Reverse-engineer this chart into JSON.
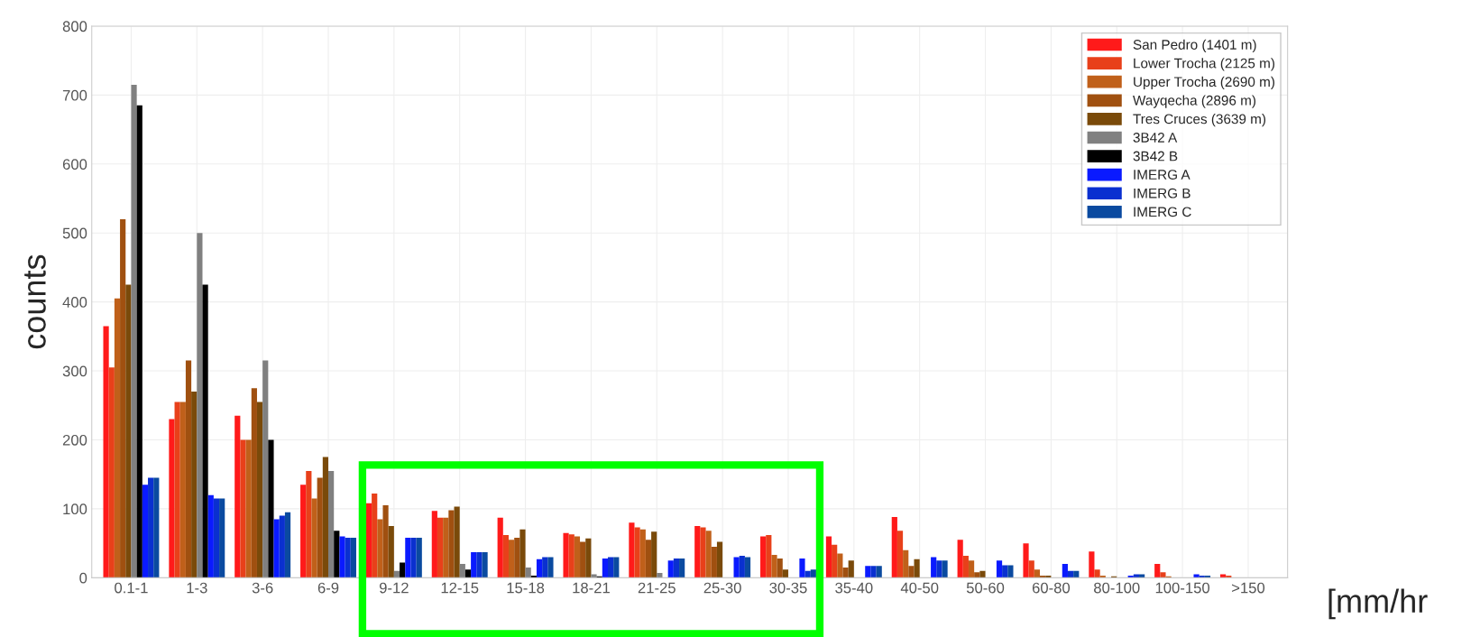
{
  "chart_data": {
    "type": "bar",
    "xlabel": "[mm/hr",
    "ylabel": "counts",
    "categories": [
      "0.1-1",
      "1-3",
      "3-6",
      "6-9",
      "9-12",
      "12-15",
      "15-18",
      "18-21",
      "21-25",
      "25-30",
      "30-35",
      "35-40",
      "40-50",
      "50-60",
      "60-80",
      "80-100",
      "100-150",
      ">150"
    ],
    "series": [
      {
        "name": "San Pedro (1401 m)",
        "color": "#ff1a1a",
        "values": [
          365,
          230,
          235,
          135,
          108,
          97,
          87,
          65,
          80,
          75,
          60,
          60,
          88,
          55,
          50,
          38,
          20,
          5
        ]
      },
      {
        "name": "Lower Trocha (2125 m)",
        "color": "#e8401a",
        "values": [
          305,
          255,
          200,
          155,
          122,
          87,
          62,
          63,
          73,
          73,
          62,
          48,
          68,
          32,
          25,
          12,
          8,
          3
        ]
      },
      {
        "name": "Upper Trocha (2690 m)",
        "color": "#c0601a",
        "values": [
          405,
          255,
          200,
          115,
          85,
          87,
          55,
          60,
          70,
          68,
          33,
          35,
          40,
          25,
          12,
          3,
          2,
          0
        ]
      },
      {
        "name": "Wayqecha (2896 m)",
        "color": "#a05010",
        "values": [
          520,
          315,
          275,
          145,
          105,
          98,
          58,
          52,
          55,
          45,
          28,
          15,
          17,
          8,
          3,
          0,
          0,
          0
        ]
      },
      {
        "name": "Tres Cruces (3639 m)",
        "color": "#7a4a0a",
        "values": [
          425,
          270,
          255,
          175,
          75,
          103,
          70,
          57,
          67,
          52,
          12,
          25,
          27,
          10,
          3,
          2,
          0,
          0
        ]
      },
      {
        "name": "3B42 A",
        "color": "#808080",
        "values": [
          715,
          500,
          315,
          155,
          10,
          20,
          15,
          5,
          7,
          0,
          0,
          0,
          0,
          0,
          0,
          0,
          0,
          0
        ]
      },
      {
        "name": "3B42 B",
        "color": "#000000",
        "values": [
          685,
          425,
          200,
          68,
          22,
          12,
          3,
          2,
          0,
          0,
          0,
          0,
          0,
          0,
          0,
          0,
          0,
          0
        ]
      },
      {
        "name": "IMERG A",
        "color": "#0a1aff",
        "values": [
          135,
          120,
          85,
          60,
          58,
          37,
          27,
          28,
          25,
          30,
          28,
          17,
          30,
          25,
          20,
          3,
          5,
          0
        ]
      },
      {
        "name": "IMERG B",
        "color": "#0a30d0",
        "values": [
          145,
          115,
          90,
          58,
          58,
          37,
          30,
          30,
          28,
          32,
          10,
          17,
          25,
          18,
          10,
          5,
          3,
          0
        ]
      },
      {
        "name": "IMERG C",
        "color": "#0a4aa0",
        "values": [
          145,
          115,
          95,
          58,
          58,
          37,
          30,
          30,
          28,
          30,
          12,
          17,
          25,
          18,
          10,
          5,
          3,
          0
        ]
      }
    ],
    "ylim": [
      0,
      800
    ],
    "yticks": [
      0,
      100,
      200,
      300,
      400,
      500,
      600,
      700,
      800
    ],
    "grid": true,
    "legend": "top right"
  }
}
